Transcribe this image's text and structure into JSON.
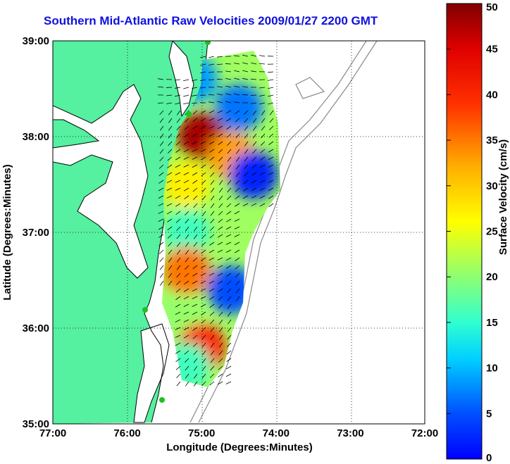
{
  "title": "Southern Mid-Atlantic Raw Velocities 2009/01/27 2200 GMT",
  "map": {
    "xlabel": "Longitude (Degrees:Minutes)",
    "ylabel": "Latitude (Degrees:Minutes)",
    "x_ticks": [
      "77:00",
      "76:00",
      "75:00",
      "74:00",
      "73:00",
      "72:00"
    ],
    "y_ticks": [
      "39:00",
      "38:00",
      "37:00",
      "36:00",
      "35:00"
    ],
    "lon_range": [
      -77,
      -72
    ],
    "lat_range": [
      35,
      39
    ],
    "grid": true,
    "land_color": "#55f0a0",
    "coast_color": "#000000",
    "bathy_color": "#888888"
  },
  "colorbar": {
    "label": "Surface Velocity (cm/s)",
    "ticks": [
      "0",
      "5",
      "10",
      "15",
      "20",
      "25",
      "30",
      "35",
      "40",
      "45",
      "50"
    ],
    "range": [
      0,
      50
    ],
    "colormap": "jet"
  },
  "chart_data": {
    "type": "heatmap",
    "title": "Southern Mid-Atlantic Raw Velocities 2009/01/27 2200 GMT",
    "xlabel": "Longitude (Degrees:Minutes)",
    "ylabel": "Latitude (Degrees:Minutes)",
    "xlim": [
      -77,
      -72
    ],
    "ylim": [
      35,
      39
    ],
    "color_range": [
      0,
      50
    ],
    "units": "cm/s",
    "regions": [
      {
        "lon": -75.0,
        "lat": 38.0,
        "speed": 48
      },
      {
        "lon": -74.6,
        "lat": 37.8,
        "speed": 36
      },
      {
        "lon": -75.2,
        "lat": 37.5,
        "speed": 32
      },
      {
        "lon": -74.3,
        "lat": 37.6,
        "speed": 8
      },
      {
        "lon": -74.5,
        "lat": 38.3,
        "speed": 12
      },
      {
        "lon": -75.1,
        "lat": 38.6,
        "speed": 14
      },
      {
        "lon": -75.2,
        "lat": 37.0,
        "speed": 22
      },
      {
        "lon": -75.2,
        "lat": 36.6,
        "speed": 38
      },
      {
        "lon": -74.6,
        "lat": 36.4,
        "speed": 10
      },
      {
        "lon": -75.3,
        "lat": 36.1,
        "speed": 26
      },
      {
        "lon": -75.0,
        "lat": 35.8,
        "speed": 42
      },
      {
        "lon": -75.2,
        "lat": 35.6,
        "speed": 22
      }
    ]
  }
}
